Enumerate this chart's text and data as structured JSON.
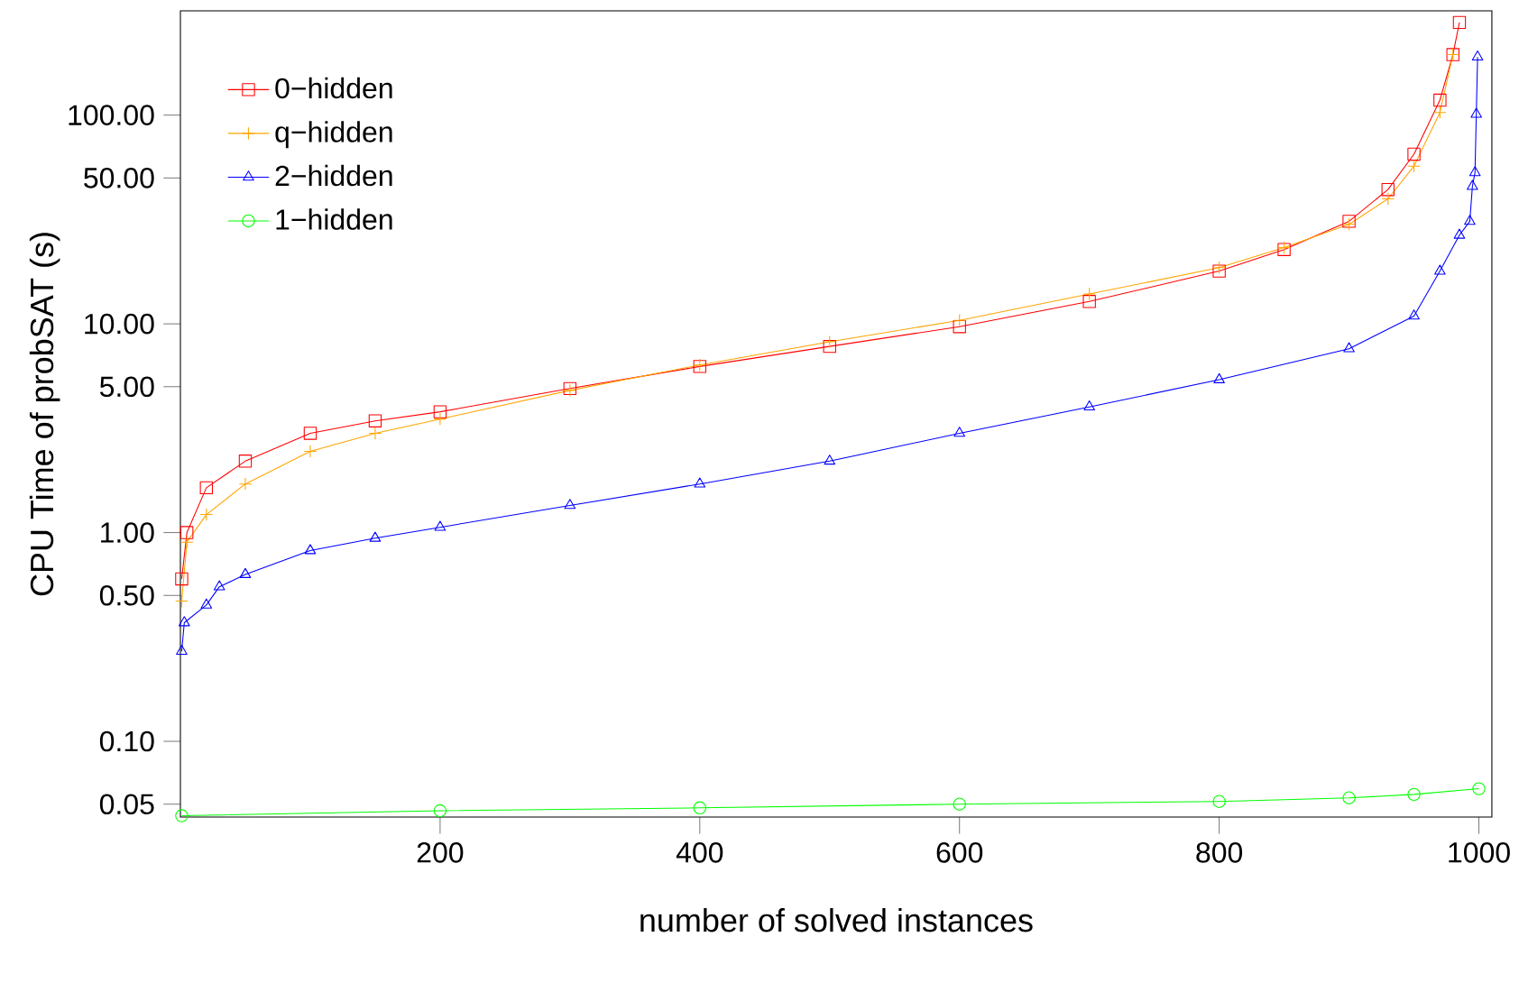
{
  "chart_data": {
    "type": "line",
    "xlabel": "number of solved instances",
    "ylabel": "CPU Time of probSAT (s)",
    "log": "y",
    "legend": "top left",
    "grid": false,
    "line_style": "solid",
    "xlim": [
      0,
      1010
    ],
    "xticks": [
      200,
      400,
      600,
      800,
      1000
    ],
    "ylim": [
      0.0434,
      316
    ],
    "yticks": [
      {
        "value": 0.05,
        "label": "0.05"
      },
      {
        "value": 0.1,
        "label": "0.10"
      },
      {
        "value": 0.5,
        "label": "0.50"
      },
      {
        "value": 1,
        "label": "1.00"
      },
      {
        "value": 5,
        "label": "5.00"
      },
      {
        "value": 10,
        "label": "10.00"
      },
      {
        "value": 50,
        "label": "50.00"
      },
      {
        "value": 100,
        "label": "100.00"
      }
    ],
    "series": [
      {
        "name": "0−hidden",
        "color": "#ff0000",
        "marker": "square",
        "x": [
          1,
          5,
          20,
          50,
          100,
          150,
          200,
          300,
          400,
          500,
          600,
          700,
          800,
          850,
          900,
          930,
          950,
          970,
          980,
          985
        ],
        "values": [
          0.6,
          1.0,
          1.64,
          2.2,
          2.99,
          3.43,
          3.79,
          4.9,
          6.25,
          7.8,
          9.7,
          12.8,
          17.9,
          22.7,
          31,
          44,
          65,
          118,
          195,
          278
        ]
      },
      {
        "name": "q−hidden",
        "color": "#ffa500",
        "marker": "cross",
        "x": [
          1,
          5,
          20,
          50,
          100,
          150,
          200,
          300,
          400,
          500,
          600,
          700,
          800,
          850,
          900,
          930,
          950,
          970,
          980
        ],
        "values": [
          0.47,
          0.9,
          1.22,
          1.71,
          2.45,
          2.99,
          3.5,
          4.8,
          6.35,
          8.2,
          10.4,
          13.9,
          18.6,
          23.2,
          30,
          39.7,
          57,
          103,
          195
        ]
      },
      {
        "name": "2−hidden",
        "color": "#0000ff",
        "marker": "triangle",
        "x": [
          1,
          3,
          20,
          30,
          50,
          100,
          150,
          200,
          300,
          400,
          500,
          600,
          700,
          800,
          900,
          950,
          970,
          985,
          993,
          995,
          997,
          998,
          999
        ],
        "values": [
          0.27,
          0.37,
          0.45,
          0.55,
          0.63,
          0.82,
          0.94,
          1.06,
          1.35,
          1.71,
          2.2,
          2.99,
          4.0,
          5.4,
          7.6,
          10.9,
          17.9,
          26.6,
          31,
          45.6,
          53,
          101,
          190
        ]
      },
      {
        "name": "1−hidden",
        "color": "#00ff00",
        "marker": "circle",
        "x": [
          1,
          200,
          400,
          600,
          800,
          900,
          950,
          1000
        ],
        "values": [
          0.044,
          0.0465,
          0.048,
          0.05,
          0.0515,
          0.0536,
          0.0557,
          0.0593
        ]
      }
    ]
  }
}
